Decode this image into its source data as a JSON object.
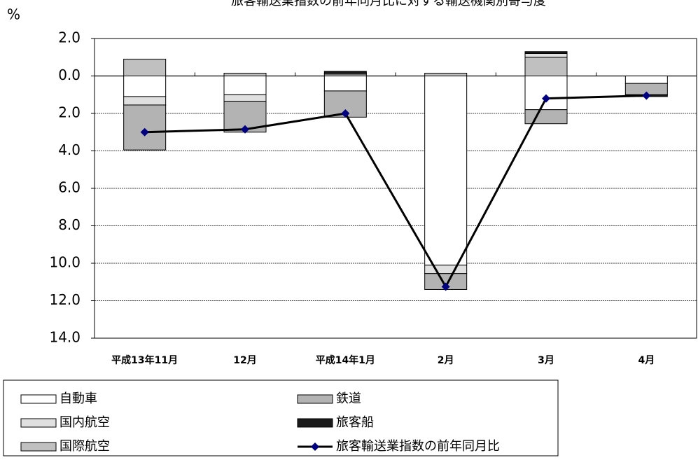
{
  "chart_data": {
    "type": "stacked-bar-line",
    "title": "旅客輸送業指数の前年同月比に対する輸送機関別寄与度",
    "y_label": "%",
    "categories": [
      "平成13年11月",
      "12月",
      "平成14年1月",
      "2月",
      "3月",
      "4月"
    ],
    "series": [
      {
        "name": "自動車",
        "color": "#ffffff",
        "values": [
          -1.1,
          -1.0,
          -0.8,
          -10.1,
          -1.8,
          -0.4
        ]
      },
      {
        "name": "鉄道",
        "color": "#b3b3b3",
        "values": [
          -2.4,
          -1.65,
          -1.4,
          -0.85,
          -0.75,
          -0.6
        ]
      },
      {
        "name": "国内航空",
        "color": "#e0e0e0",
        "values": [
          -0.45,
          -0.35,
          0.05,
          -0.45,
          0.2,
          0
        ]
      },
      {
        "name": "旅客船",
        "color": "#1a1a1a",
        "values": [
          0,
          0,
          0.1,
          0,
          0.1,
          -0.1
        ]
      },
      {
        "name": "国際航空",
        "color": "#c0c0c0",
        "values": [
          0.9,
          0.15,
          0.1,
          0.15,
          1.0,
          0
        ]
      }
    ],
    "line": {
      "name": "旅客輸送業指数の前年同月比",
      "color": "#000080",
      "values": [
        -3.0,
        -2.85,
        -2.0,
        -11.25,
        -1.2,
        -1.05
      ]
    },
    "ylim": [
      -14,
      2
    ],
    "yticks": [
      {
        "value": 2,
        "label": "2.0"
      },
      {
        "value": 0,
        "label": "0.0"
      },
      {
        "value": -2,
        "label": "2.0"
      },
      {
        "value": -4,
        "label": "4.0"
      },
      {
        "value": -6,
        "label": "6.0"
      },
      {
        "value": -8,
        "label": "8.0"
      },
      {
        "value": -10,
        "label": "10.0"
      },
      {
        "value": -12,
        "label": "12.0"
      },
      {
        "value": -14,
        "label": "14.0"
      }
    ],
    "grid": true
  }
}
